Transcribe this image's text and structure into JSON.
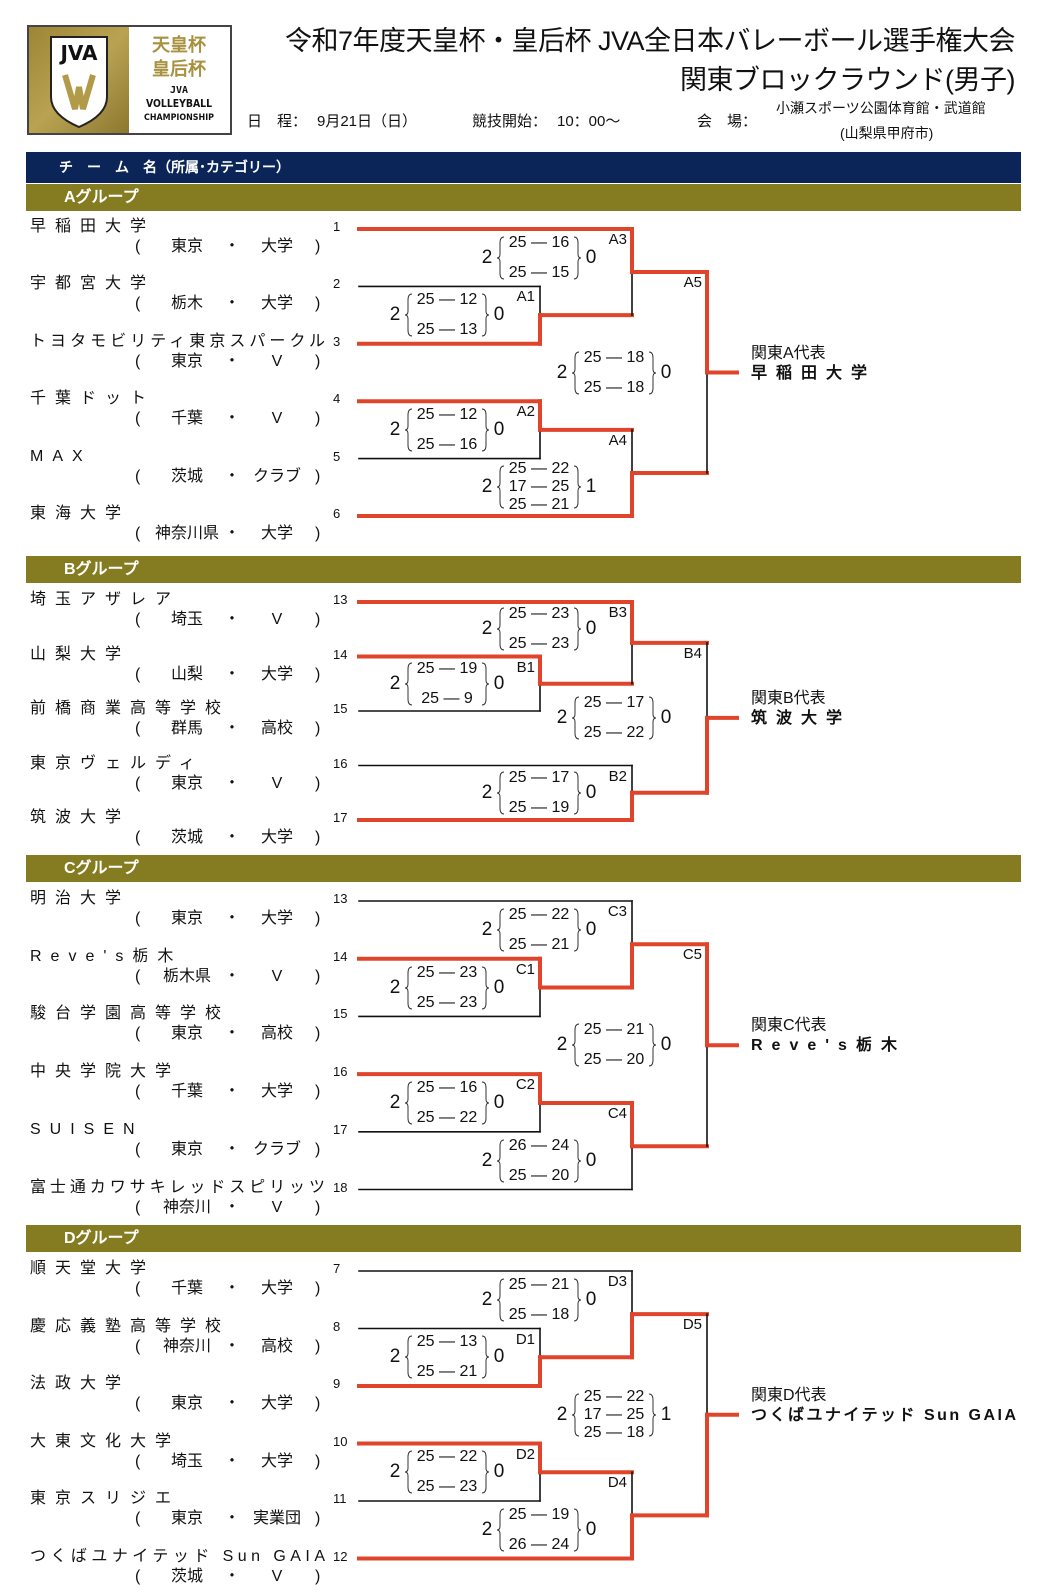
{
  "logo": {
    "jva": "JVA",
    "cup1": "天皇杯",
    "cup2": "皇后杯",
    "sub1": "JVA",
    "sub2": "VOLLEYBALL",
    "sub3": "CHAMPIONSHIP",
    "gold": "#a8913f"
  },
  "header": {
    "title_line1": "令和7年度天皇杯・皇后杯 JVA全日本バレーボール選手権大会",
    "title_line2": "関東ブロックラウンド(男子)",
    "date_label": "日　程：",
    "date_value": "9月21日（日）",
    "start_label": "競技開始：",
    "start_value": "10：00～",
    "venue_label": "会　場：",
    "venue_name": "小瀬スポーツ公園体育館・武道館",
    "venue_city": "(山梨県甲府市)"
  },
  "table_header": "チ　ー　ム　名（所属･カテゴリー）",
  "colors": {
    "navy": "#0b2559",
    "olive": "#857c22",
    "winner_line": "#e0452c",
    "line": "#111111"
  },
  "groups": [
    {
      "label": "Aグループ",
      "representative_label": "関東A代表",
      "representative": "早稲田大学",
      "teams": [
        {
          "seed": "1",
          "name": "早稲田大学",
          "pref": "東京",
          "category": "大学"
        },
        {
          "seed": "2",
          "name": "宇都宮大学",
          "pref": "栃木",
          "category": "大学"
        },
        {
          "seed": "3",
          "name": "トヨタモビリティ東京スパークル",
          "pref": "東京",
          "category": "V"
        },
        {
          "seed": "4",
          "name": "千葉ドット",
          "pref": "千葉",
          "category": "V"
        },
        {
          "seed": "5",
          "name": "MAX",
          "pref": "茨城",
          "category": "クラブ"
        },
        {
          "seed": "6",
          "name": "東海大学",
          "pref": "神奈川県",
          "category": "大学"
        }
      ],
      "matches": [
        {
          "id": "A1",
          "round": 1,
          "top": 1,
          "bottom": 2,
          "winner": "bottom",
          "sets_won": [
            2,
            0
          ],
          "sets": [
            [
              25,
              12
            ],
            [
              25,
              13
            ]
          ]
        },
        {
          "id": "A2",
          "round": 1,
          "top": 3,
          "bottom": 4,
          "winner": "top",
          "sets_won": [
            2,
            0
          ],
          "sets": [
            [
              25,
              12
            ],
            [
              25,
              16
            ]
          ]
        },
        {
          "id": "A3",
          "round": 2,
          "top": 0,
          "bottom": "A1",
          "winner": "top",
          "sets_won": [
            2,
            0
          ],
          "sets": [
            [
              25,
              16
            ],
            [
              25,
              15
            ]
          ]
        },
        {
          "id": "A4",
          "round": 2,
          "top": "A2",
          "bottom": 5,
          "winner": "bottom",
          "sets_won": [
            2,
            1
          ],
          "sets": [
            [
              25,
              22
            ],
            [
              17,
              25
            ],
            [
              25,
              21
            ]
          ]
        },
        {
          "id": "A5",
          "round": 3,
          "top": "A3",
          "bottom": "A4",
          "winner": "top",
          "sets_won": [
            2,
            0
          ],
          "sets": [
            [
              25,
              18
            ],
            [
              25,
              18
            ]
          ]
        }
      ]
    },
    {
      "label": "Bグループ",
      "representative_label": "関東B代表",
      "representative": "筑波大学",
      "teams": [
        {
          "seed": "13",
          "name": "埼玉アザレア",
          "pref": "埼玉",
          "category": "V"
        },
        {
          "seed": "14",
          "name": "山梨大学",
          "pref": "山梨",
          "category": "大学"
        },
        {
          "seed": "15",
          "name": "前橋商業高等学校",
          "pref": "群馬",
          "category": "高校"
        },
        {
          "seed": "16",
          "name": "東京ヴェルディ",
          "pref": "東京",
          "category": "V"
        },
        {
          "seed": "17",
          "name": "筑波大学",
          "pref": "茨城",
          "category": "大学"
        }
      ],
      "matches": [
        {
          "id": "B1",
          "round": 1,
          "top": 1,
          "bottom": 2,
          "winner": "top",
          "sets_won": [
            2,
            0
          ],
          "sets": [
            [
              25,
              19
            ],
            [
              25,
              9
            ]
          ]
        },
        {
          "id": "B3",
          "round": 2,
          "top": 0,
          "bottom": "B1",
          "winner": "top",
          "sets_won": [
            2,
            0
          ],
          "sets": [
            [
              25,
              23
            ],
            [
              25,
              23
            ]
          ]
        },
        {
          "id": "B2",
          "round": 2,
          "top": 3,
          "bottom": 4,
          "winner": "bottom",
          "sets_won": [
            2,
            0
          ],
          "sets": [
            [
              25,
              17
            ],
            [
              25,
              19
            ]
          ]
        },
        {
          "id": "B4",
          "round": 3,
          "top": "B3",
          "bottom": "B2",
          "winner": "bottom",
          "sets_won": [
            2,
            0
          ],
          "sets": [
            [
              25,
              17
            ],
            [
              25,
              22
            ]
          ]
        }
      ]
    },
    {
      "label": "Cグループ",
      "representative_label": "関東C代表",
      "representative": "Reve's栃木",
      "teams": [
        {
          "seed": "13",
          "name": "明治大学",
          "pref": "東京",
          "category": "大学"
        },
        {
          "seed": "14",
          "name": "Reve's栃木",
          "pref": "栃木県",
          "category": "V"
        },
        {
          "seed": "15",
          "name": "駿台学園高等学校",
          "pref": "東京",
          "category": "高校"
        },
        {
          "seed": "16",
          "name": "中央学院大学",
          "pref": "千葉",
          "category": "大学"
        },
        {
          "seed": "17",
          "name": "SUISEN",
          "pref": "東京",
          "category": "クラブ"
        },
        {
          "seed": "18",
          "name": "富士通カワサキレッドスピリッツ",
          "pref": "神奈川",
          "category": "V"
        }
      ],
      "matches": [
        {
          "id": "C1",
          "round": 1,
          "top": 1,
          "bottom": 2,
          "winner": "top",
          "sets_won": [
            2,
            0
          ],
          "sets": [
            [
              25,
              23
            ],
            [
              25,
              23
            ]
          ]
        },
        {
          "id": "C2",
          "round": 1,
          "top": 3,
          "bottom": 4,
          "winner": "top",
          "sets_won": [
            2,
            0
          ],
          "sets": [
            [
              25,
              16
            ],
            [
              25,
              22
            ]
          ]
        },
        {
          "id": "C3",
          "round": 2,
          "top": 0,
          "bottom": "C1",
          "winner": "bottom",
          "sets_won": [
            2,
            0
          ],
          "sets": [
            [
              25,
              22
            ],
            [
              25,
              21
            ]
          ]
        },
        {
          "id": "C4",
          "round": 2,
          "top": "C2",
          "bottom": 5,
          "winner": "top",
          "sets_won": [
            2,
            0
          ],
          "sets": [
            [
              26,
              24
            ],
            [
              25,
              20
            ]
          ]
        },
        {
          "id": "C5",
          "round": 3,
          "top": "C3",
          "bottom": "C4",
          "winner": "top",
          "sets_won": [
            2,
            0
          ],
          "sets": [
            [
              25,
              21
            ],
            [
              25,
              20
            ]
          ]
        }
      ]
    },
    {
      "label": "Dグループ",
      "representative_label": "関東D代表",
      "representative": "つくばユナイテッド Sun GAIA",
      "teams": [
        {
          "seed": "7",
          "name": "順天堂大学",
          "pref": "千葉",
          "category": "大学"
        },
        {
          "seed": "8",
          "name": "慶応義塾高等学校",
          "pref": "神奈川",
          "category": "高校"
        },
        {
          "seed": "9",
          "name": "法政大学",
          "pref": "東京",
          "category": "大学"
        },
        {
          "seed": "10",
          "name": "大東文化大学",
          "pref": "埼玉",
          "category": "大学"
        },
        {
          "seed": "11",
          "name": "東京スリジエ",
          "pref": "東京",
          "category": "実業団"
        },
        {
          "seed": "12",
          "name": "つくばユナイテッド Sun GAIA",
          "pref": "茨城",
          "category": "V"
        }
      ],
      "matches": [
        {
          "id": "D1",
          "round": 1,
          "top": 1,
          "bottom": 2,
          "winner": "bottom",
          "sets_won": [
            2,
            0
          ],
          "sets": [
            [
              25,
              13
            ],
            [
              25,
              21
            ]
          ]
        },
        {
          "id": "D2",
          "round": 1,
          "top": 3,
          "bottom": 4,
          "winner": "top",
          "sets_won": [
            2,
            0
          ],
          "sets": [
            [
              25,
              22
            ],
            [
              25,
              23
            ]
          ]
        },
        {
          "id": "D3",
          "round": 2,
          "top": 0,
          "bottom": "D1",
          "winner": "bottom",
          "sets_won": [
            2,
            0
          ],
          "sets": [
            [
              25,
              21
            ],
            [
              25,
              18
            ]
          ]
        },
        {
          "id": "D4",
          "round": 2,
          "top": "D2",
          "bottom": 5,
          "winner": "bottom",
          "sets_won": [
            2,
            0
          ],
          "sets": [
            [
              25,
              19
            ],
            [
              26,
              24
            ]
          ]
        },
        {
          "id": "D5",
          "round": 3,
          "top": "D3",
          "bottom": "D4",
          "winner": "bottom",
          "sets_won": [
            2,
            1
          ],
          "sets": [
            [
              25,
              22
            ],
            [
              17,
              25
            ],
            [
              25,
              18
            ]
          ]
        }
      ]
    }
  ]
}
